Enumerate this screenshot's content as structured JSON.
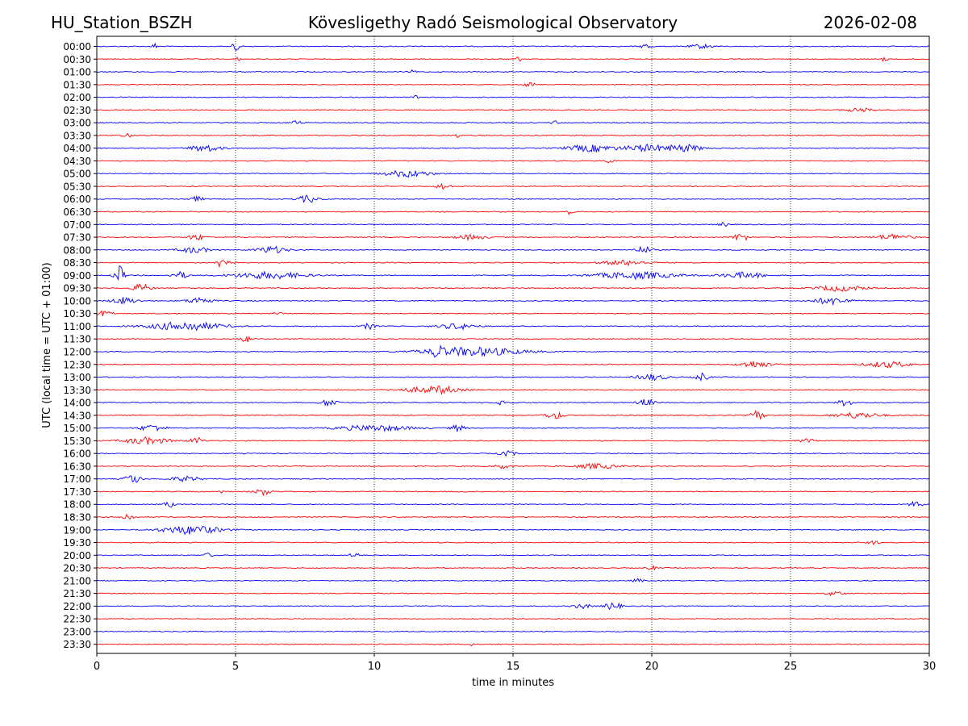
{
  "header": {
    "station": "HU_Station_BSZH",
    "observatory": "Kövesligethy Radó Seismological Observatory",
    "date": "2026-02-08"
  },
  "chart_data": {
    "type": "line",
    "title": "Kövesligethy Radó Seismological Observatory",
    "xlabel": "time in minutes",
    "ylabel": "UTC (local time = UTC + 01:00)",
    "xlim": [
      0,
      30
    ],
    "x_ticks": [
      0,
      5,
      10,
      15,
      20,
      25,
      30
    ],
    "vertical_gridlines": [
      5,
      10,
      15,
      20,
      25
    ],
    "trace_colors": [
      "#0000ff",
      "#ff0000"
    ],
    "traces": [
      {
        "label": "00:00",
        "events": [
          [
            2.1,
            0.3,
            0.15
          ],
          [
            5.0,
            0.6,
            0.15
          ],
          [
            19.8,
            0.3,
            0.3
          ],
          [
            21.8,
            0.2,
            0.8
          ]
        ]
      },
      {
        "label": "00:30",
        "events": [
          [
            5.1,
            0.2,
            0.1
          ],
          [
            15.2,
            0.3,
            0.1
          ],
          [
            28.4,
            0.2,
            0.2
          ]
        ]
      },
      {
        "label": "01:00",
        "events": [
          [
            11.4,
            0.2,
            0.1
          ]
        ]
      },
      {
        "label": "01:30",
        "events": [
          [
            15.6,
            0.2,
            0.4
          ]
        ]
      },
      {
        "label": "02:00",
        "events": [
          [
            11.5,
            0.2,
            0.1
          ]
        ]
      },
      {
        "label": "02:30",
        "events": [
          [
            27.5,
            0.2,
            0.8
          ]
        ]
      },
      {
        "label": "03:00",
        "events": [
          [
            7.2,
            0.2,
            0.3
          ],
          [
            16.5,
            0.2,
            0.2
          ]
        ]
      },
      {
        "label": "03:30",
        "events": [
          [
            1.1,
            0.2,
            0.3
          ],
          [
            13.0,
            0.2,
            0.1
          ]
        ]
      },
      {
        "label": "04:00",
        "events": [
          [
            3.9,
            0.35,
            1.0
          ],
          [
            17.8,
            0.35,
            1.6
          ],
          [
            19.8,
            0.35,
            1.5
          ],
          [
            21.2,
            0.35,
            1.2
          ]
        ]
      },
      {
        "label": "04:30",
        "events": [
          [
            18.5,
            0.2,
            0.3
          ]
        ]
      },
      {
        "label": "05:00",
        "events": [
          [
            11.2,
            0.35,
            1.5
          ]
        ]
      },
      {
        "label": "05:30",
        "events": [
          [
            12.5,
            0.35,
            0.4
          ]
        ]
      },
      {
        "label": "06:00",
        "events": [
          [
            3.6,
            0.25,
            0.4
          ],
          [
            7.6,
            0.35,
            0.7
          ]
        ]
      },
      {
        "label": "06:30",
        "events": [
          [
            17.0,
            0.25,
            0.2
          ]
        ]
      },
      {
        "label": "07:00",
        "events": [
          [
            22.6,
            0.2,
            0.3
          ]
        ]
      },
      {
        "label": "07:30",
        "events": [
          [
            3.6,
            0.3,
            0.5
          ],
          [
            13.5,
            0.25,
            1.0
          ],
          [
            23.2,
            0.4,
            0.5
          ],
          [
            28.7,
            0.3,
            1.2
          ]
        ]
      },
      {
        "label": "08:00",
        "events": [
          [
            3.5,
            0.3,
            1.0
          ],
          [
            6.3,
            0.35,
            1.0
          ],
          [
            19.7,
            0.35,
            0.5
          ]
        ]
      },
      {
        "label": "08:30",
        "events": [
          [
            4.6,
            0.8,
            0.4
          ],
          [
            19.0,
            0.25,
            1.5
          ]
        ]
      },
      {
        "label": "09:00",
        "events": [
          [
            0.8,
            1.0,
            0.3
          ],
          [
            3.0,
            0.35,
            0.5
          ],
          [
            6.2,
            0.35,
            2.5
          ],
          [
            19.4,
            0.35,
            2.8
          ],
          [
            23.3,
            0.3,
            1.5
          ]
        ]
      },
      {
        "label": "09:30",
        "events": [
          [
            1.6,
            0.4,
            0.6
          ],
          [
            26.8,
            0.3,
            1.6
          ]
        ]
      },
      {
        "label": "10:00",
        "events": [
          [
            1.0,
            0.35,
            0.8
          ],
          [
            3.7,
            0.35,
            0.8
          ],
          [
            26.5,
            0.35,
            1.2
          ]
        ]
      },
      {
        "label": "10:30",
        "events": [
          [
            0.3,
            0.35,
            0.4
          ],
          [
            6.5,
            0.2,
            0.2
          ]
        ]
      },
      {
        "label": "11:00",
        "events": [
          [
            3.2,
            0.45,
            2.5
          ],
          [
            9.8,
            0.3,
            0.4
          ],
          [
            13.0,
            0.3,
            1.2
          ]
        ]
      },
      {
        "label": "11:30",
        "events": [
          [
            5.4,
            0.3,
            0.4
          ]
        ]
      },
      {
        "label": "12:00",
        "events": [
          [
            12.3,
            0.9,
            0.2
          ],
          [
            13.5,
            0.45,
            3.5
          ]
        ]
      },
      {
        "label": "12:30",
        "events": [
          [
            23.7,
            0.35,
            1.0
          ],
          [
            28.5,
            0.3,
            1.5
          ]
        ]
      },
      {
        "label": "13:00",
        "events": [
          [
            20.0,
            0.3,
            1.0
          ],
          [
            21.8,
            0.4,
            0.4
          ]
        ]
      },
      {
        "label": "13:30",
        "events": [
          [
            12.0,
            0.3,
            2.0
          ],
          [
            12.5,
            0.3,
            0.3
          ]
        ]
      },
      {
        "label": "14:00",
        "events": [
          [
            8.4,
            0.35,
            0.6
          ],
          [
            14.6,
            0.3,
            0.3
          ],
          [
            19.8,
            0.35,
            0.5
          ],
          [
            27.0,
            0.35,
            0.5
          ]
        ]
      },
      {
        "label": "14:30",
        "events": [
          [
            16.5,
            0.35,
            0.6
          ],
          [
            23.8,
            0.45,
            0.4
          ],
          [
            27.4,
            0.3,
            1.5
          ]
        ]
      },
      {
        "label": "15:00",
        "events": [
          [
            2.0,
            0.35,
            0.8
          ],
          [
            10.0,
            0.3,
            2.5
          ],
          [
            13.0,
            0.35,
            0.4
          ]
        ]
      },
      {
        "label": "15:30",
        "events": [
          [
            1.8,
            0.35,
            1.5
          ],
          [
            3.6,
            0.35,
            0.4
          ],
          [
            25.6,
            0.3,
            0.4
          ]
        ]
      },
      {
        "label": "16:00",
        "events": [
          [
            14.8,
            0.25,
            0.5
          ]
        ]
      },
      {
        "label": "16:30",
        "events": [
          [
            14.6,
            0.25,
            0.4
          ],
          [
            18.0,
            0.25,
            1.5
          ]
        ]
      },
      {
        "label": "17:00",
        "events": [
          [
            1.3,
            0.5,
            0.5
          ],
          [
            3.2,
            0.25,
            1.0
          ]
        ]
      },
      {
        "label": "17:30",
        "events": [
          [
            6.0,
            0.35,
            0.5
          ],
          [
            4.6,
            0.25,
            0.2
          ]
        ]
      },
      {
        "label": "18:00",
        "events": [
          [
            2.6,
            0.3,
            0.3
          ],
          [
            29.5,
            0.3,
            0.4
          ]
        ]
      },
      {
        "label": "18:30",
        "events": [
          [
            1.1,
            0.35,
            0.4
          ]
        ]
      },
      {
        "label": "19:00",
        "events": [
          [
            3.4,
            0.45,
            2.0
          ]
        ]
      },
      {
        "label": "19:30",
        "events": [
          [
            28.0,
            0.2,
            0.3
          ]
        ]
      },
      {
        "label": "20:00",
        "events": [
          [
            9.3,
            0.25,
            0.3
          ],
          [
            4.0,
            0.2,
            0.3
          ]
        ]
      },
      {
        "label": "20:30",
        "events": [
          [
            20.0,
            0.2,
            0.3
          ]
        ]
      },
      {
        "label": "21:00",
        "events": [
          [
            19.5,
            0.2,
            0.3
          ]
        ]
      },
      {
        "label": "21:30",
        "events": [
          [
            26.6,
            0.25,
            0.5
          ]
        ]
      },
      {
        "label": "22:00",
        "events": [
          [
            17.5,
            0.25,
            0.5
          ],
          [
            18.6,
            0.4,
            0.5
          ]
        ]
      },
      {
        "label": "22:30",
        "events": []
      },
      {
        "label": "23:00",
        "events": []
      },
      {
        "label": "23:30",
        "events": [
          [
            13.5,
            0.2,
            0.1
          ]
        ]
      }
    ]
  }
}
